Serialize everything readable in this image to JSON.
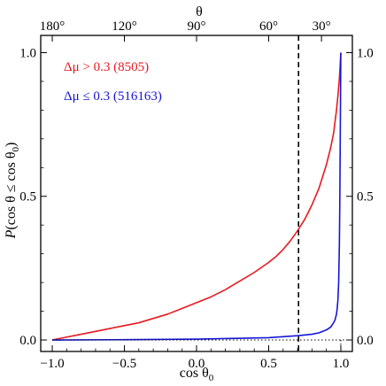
{
  "chart_data": {
    "type": "line",
    "top_axis_label": "θ",
    "top_ticks": [
      "180°",
      "120°",
      "90°",
      "60°",
      "30°"
    ],
    "top_tick_values": [
      -1.0,
      -0.5,
      0.0,
      0.5,
      0.8660254
    ],
    "xlabel": "cos θ0",
    "ylabel": "P(cos θ ≤ cos θ0)",
    "x_tick_values": [
      -1.0,
      -0.5,
      0.0,
      0.5,
      1.0
    ],
    "x_tick_labels": [
      "−1.0",
      "−0.5",
      "0.0",
      "0.5",
      "1.0"
    ],
    "y_tick_values": [
      0.0,
      0.5,
      1.0
    ],
    "y_tick_labels": [
      "0.0",
      "0.5",
      "1.0"
    ],
    "xlim": [
      -1.08,
      1.08
    ],
    "ylim": [
      -0.04,
      1.06
    ],
    "dashed_vline_x": 0.7071,
    "dotted_vline_x": 1.0,
    "dotted_hline_y": 0.0,
    "legend": [
      {
        "label": "Δμ > 0.3",
        "count": "(8505)",
        "color": "#e8191f"
      },
      {
        "label": "Δμ ≤ 0.3",
        "count": "(516163)",
        "color": "#1515d8"
      }
    ],
    "series": [
      {
        "name": "Δμ > 0.3 (8505)",
        "color": "#e8191f",
        "x": [
          -1.0,
          -0.9,
          -0.8,
          -0.7,
          -0.6,
          -0.5,
          -0.4,
          -0.3,
          -0.2,
          -0.1,
          0.0,
          0.1,
          0.2,
          0.3,
          0.4,
          0.5,
          0.55,
          0.6,
          0.65,
          0.7,
          0.75,
          0.8,
          0.85,
          0.9,
          0.93,
          0.95,
          0.97,
          0.98,
          0.99,
          1.0
        ],
        "y": [
          0.0,
          0.01,
          0.02,
          0.03,
          0.04,
          0.05,
          0.06,
          0.075,
          0.09,
          0.11,
          0.13,
          0.15,
          0.175,
          0.205,
          0.235,
          0.27,
          0.29,
          0.315,
          0.345,
          0.38,
          0.42,
          0.47,
          0.53,
          0.61,
          0.67,
          0.72,
          0.8,
          0.85,
          0.91,
          1.0
        ]
      },
      {
        "name": "Δμ ≤ 0.3 (516163)",
        "color": "#1515d8",
        "x": [
          -1.0,
          -0.5,
          0.0,
          0.5,
          0.7,
          0.8,
          0.85,
          0.9,
          0.93,
          0.95,
          0.96,
          0.97,
          0.975,
          0.98,
          0.985,
          0.99,
          0.993,
          0.996,
          0.998,
          1.0
        ],
        "y": [
          0.0,
          0.001,
          0.003,
          0.008,
          0.015,
          0.02,
          0.025,
          0.035,
          0.045,
          0.06,
          0.07,
          0.09,
          0.11,
          0.14,
          0.2,
          0.33,
          0.48,
          0.7,
          0.85,
          1.0
        ]
      }
    ]
  }
}
